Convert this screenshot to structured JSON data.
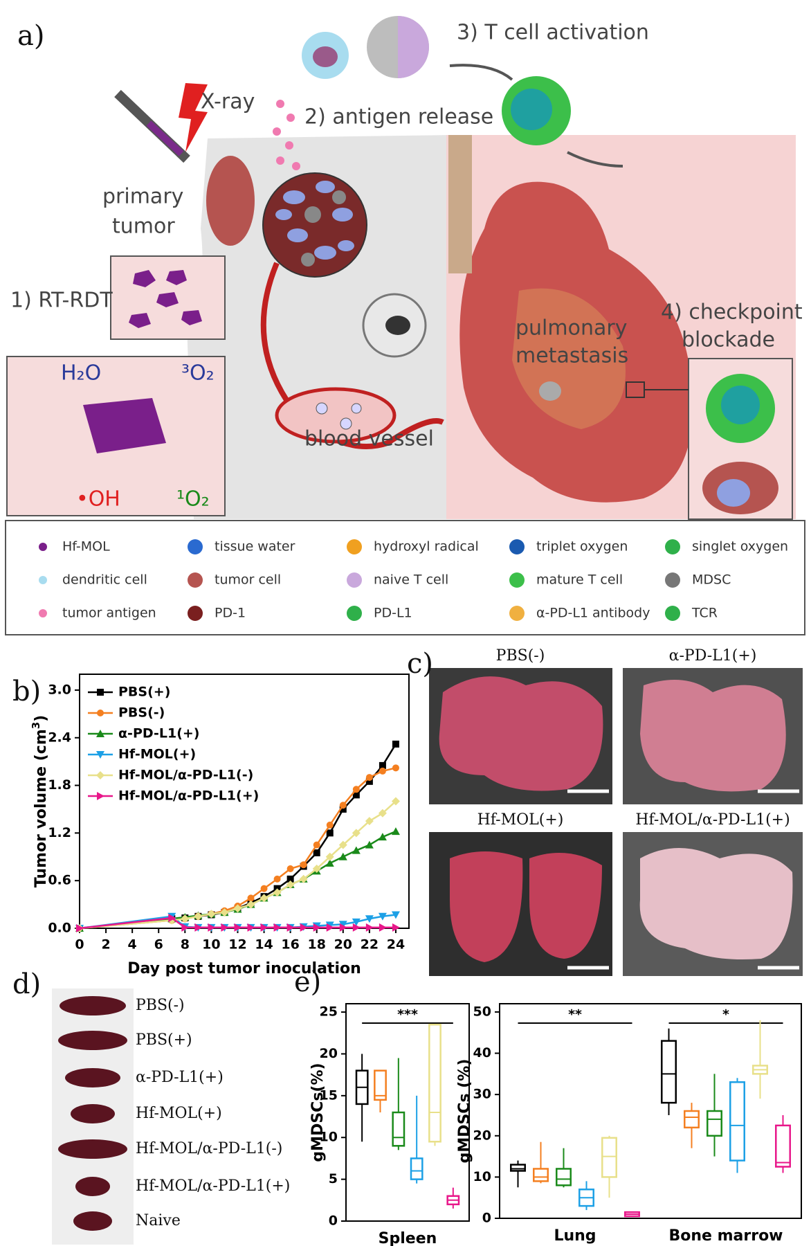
{
  "panel_a": {
    "label": "a)",
    "xray": "X-ray",
    "primary_tumor": [
      "primary",
      "tumor"
    ],
    "step1": "1) RT-RDT",
    "step2": "2) antigen release",
    "step3": "3) T cell activation",
    "step4": [
      "4) checkpoint",
      "blockade"
    ],
    "metastasis": [
      "pulmonary",
      "metastasis"
    ],
    "blood_vessel": "blood vessel",
    "reaction": {
      "water": "H₂O",
      "triplet": "³O₂",
      "hydroxyl": "•OH",
      "singlet": "¹O₂"
    },
    "legend": [
      "Hf-MOL",
      "tissue water",
      "hydroxyl radical",
      "triplet oxygen",
      "singlet oxygen",
      "dendritic cell",
      "tumor cell",
      "naive T cell",
      "mature T cell",
      "MDSC",
      "tumor antigen",
      "PD-1",
      "PD-L1",
      "α-PD-L1 antibody",
      "TCR"
    ]
  },
  "chart_data": [
    {
      "type": "line",
      "panel_label": "b)",
      "xlabel": "Day post tumor inoculation",
      "ylabel": "Tumor volume (cm",
      "ylabel_superscript": "3",
      "ylabel_suffix": ")",
      "x": [
        0,
        7,
        8,
        9,
        10,
        11,
        12,
        13,
        14,
        15,
        16,
        17,
        18,
        19,
        20,
        21,
        22,
        23,
        24
      ],
      "xlim": [
        0,
        25
      ],
      "ylim": [
        0,
        3.2
      ],
      "xticks": [
        0,
        2,
        4,
        6,
        8,
        10,
        12,
        14,
        16,
        18,
        20,
        22,
        24
      ],
      "yticks": [
        {
          "value": 0,
          "label": "0.0"
        },
        0.6,
        1.2,
        1.8,
        2.4,
        {
          "value": 3,
          "label": "3.0"
        }
      ],
      "legend": "top-left",
      "series": [
        {
          "name": "PBS(+)",
          "color": "#000000",
          "marker": "square",
          "values": [
            0,
            0.12,
            0.13,
            0.15,
            0.17,
            0.2,
            0.25,
            0.32,
            0.4,
            0.5,
            0.62,
            0.78,
            0.95,
            1.2,
            1.5,
            1.68,
            1.85,
            2.05,
            2.32
          ]
        },
        {
          "name": "PBS(-)",
          "color": "#f47f20",
          "marker": "circle",
          "values": [
            0,
            0.1,
            0.12,
            0.15,
            0.18,
            0.22,
            0.28,
            0.38,
            0.5,
            0.62,
            0.75,
            0.8,
            1.05,
            1.3,
            1.55,
            1.75,
            1.9,
            1.98,
            2.02
          ]
        },
        {
          "name": "α-PD-L1(+)",
          "color": "#1a8a1a",
          "marker": "triangle",
          "values": [
            0,
            0.12,
            0.14,
            0.16,
            0.18,
            0.2,
            0.24,
            0.3,
            0.38,
            0.45,
            0.55,
            0.62,
            0.72,
            0.82,
            0.9,
            0.98,
            1.05,
            1.15,
            1.22
          ]
        },
        {
          "name": "Hf-MOL(+)",
          "color": "#1ca0e6",
          "marker": "down",
          "values": [
            0,
            0.15,
            0.02,
            0.01,
            0.01,
            0.01,
            0.01,
            0.01,
            0.01,
            0.01,
            0.01,
            0.02,
            0.03,
            0.04,
            0.05,
            0.08,
            0.12,
            0.15,
            0.17
          ]
        },
        {
          "name": "Hf-MOL/α-PD-L1(-)",
          "color": "#e8e08a",
          "marker": "diamond",
          "values": [
            0,
            0.1,
            0.12,
            0.15,
            0.18,
            0.2,
            0.25,
            0.3,
            0.38,
            0.45,
            0.55,
            0.62,
            0.75,
            0.9,
            1.05,
            1.2,
            1.35,
            1.45,
            1.6
          ]
        },
        {
          "name": "Hf-MOL/α-PD-L1(+)",
          "color": "#e8178a",
          "marker": "right",
          "values": [
            0,
            0.13,
            0.01,
            0.01,
            0.01,
            0.01,
            0.01,
            0.01,
            0.01,
            0.01,
            0.01,
            0.01,
            0.01,
            0.01,
            0.01,
            0.01,
            0.01,
            0.01,
            0.01
          ]
        }
      ]
    },
    {
      "type": "box",
      "panel_label": "e)",
      "ylabel": "gMDSCs(%)",
      "ylim": [
        0,
        26
      ],
      "yticks": [
        0,
        5,
        10,
        15,
        20,
        25
      ],
      "groups": [
        {
          "name": "Spleen",
          "significance": "***",
          "boxes": [
            {
              "color": "#000000",
              "min": 9.5,
              "q1": 14,
              "median": 16,
              "q3": 18,
              "max": 20
            },
            {
              "color": "#f47f20",
              "min": 13,
              "q1": 14.5,
              "median": 15,
              "q3": 18,
              "max": 18
            },
            {
              "color": "#1a8a1a",
              "min": 8.5,
              "q1": 9,
              "median": 10,
              "q3": 13,
              "max": 19.5
            },
            {
              "color": "#1ca0e6",
              "min": 4.5,
              "q1": 5,
              "median": 6,
              "q3": 7.5,
              "max": 15
            },
            {
              "color": "#e8e08a",
              "min": 9,
              "q1": 9.5,
              "median": 13,
              "q3": 23.5,
              "max": 23.5
            },
            {
              "color": "#e8178a",
              "min": 1.5,
              "q1": 2,
              "median": 2.5,
              "q3": 3,
              "max": 4
            }
          ]
        }
      ]
    },
    {
      "type": "box",
      "ylabel": "gMDSCs (%)",
      "ylim": [
        0,
        52
      ],
      "yticks": [
        0,
        10,
        20,
        30,
        40,
        50
      ],
      "groups": [
        {
          "name": "Lung",
          "significance": "**",
          "boxes": [
            {
              "color": "#000000",
              "min": 7.5,
              "q1": 11.5,
              "median": 12,
              "q3": 13,
              "max": 14
            },
            {
              "color": "#f47f20",
              "min": 8.5,
              "q1": 9,
              "median": 10,
              "q3": 12,
              "max": 18.5
            },
            {
              "color": "#1a8a1a",
              "min": 7.5,
              "q1": 8,
              "median": 9.5,
              "q3": 12,
              "max": 17
            },
            {
              "color": "#1ca0e6",
              "min": 2,
              "q1": 3,
              "median": 5,
              "q3": 7,
              "max": 9
            },
            {
              "color": "#e8e08a",
              "min": 5,
              "q1": 10,
              "median": 15,
              "q3": 19.5,
              "max": 20
            },
            {
              "color": "#e8178a",
              "min": 0.5,
              "q1": 0.5,
              "median": 1,
              "q3": 1.5,
              "max": 1.5
            }
          ]
        },
        {
          "name": "Bone marrow",
          "significance": "*",
          "boxes": [
            {
              "color": "#000000",
              "min": 25,
              "q1": 28,
              "median": 35,
              "q3": 43,
              "max": 46
            },
            {
              "color": "#f47f20",
              "min": 17,
              "q1": 22,
              "median": 24.5,
              "q3": 26,
              "max": 28
            },
            {
              "color": "#1a8a1a",
              "min": 15,
              "q1": 20,
              "median": 24,
              "q3": 26,
              "max": 35
            },
            {
              "color": "#1ca0e6",
              "min": 11,
              "q1": 14,
              "median": 22.5,
              "q3": 33,
              "max": 34
            },
            {
              "color": "#e8e08a",
              "min": 29,
              "q1": 35,
              "median": 36,
              "q3": 37,
              "max": 48
            },
            {
              "color": "#e8178a",
              "min": 11,
              "q1": 12.5,
              "median": 13.5,
              "q3": 22.5,
              "max": 25
            }
          ]
        }
      ]
    }
  ],
  "panel_c": {
    "label": "c)",
    "images": [
      "PBS(-)",
      "α-PD-L1(+)",
      "Hf-MOL(+)",
      "Hf-MOL/α-PD-L1(+)"
    ]
  },
  "panel_d": {
    "label": "d)",
    "samples": [
      "PBS(-)",
      "PBS(+)",
      "α-PD-L1(+)",
      "Hf-MOL(+)",
      "Hf-MOL/α-PD-L1(-)",
      "Hf-MOL/α-PD-L1(+)",
      "Naive"
    ]
  }
}
